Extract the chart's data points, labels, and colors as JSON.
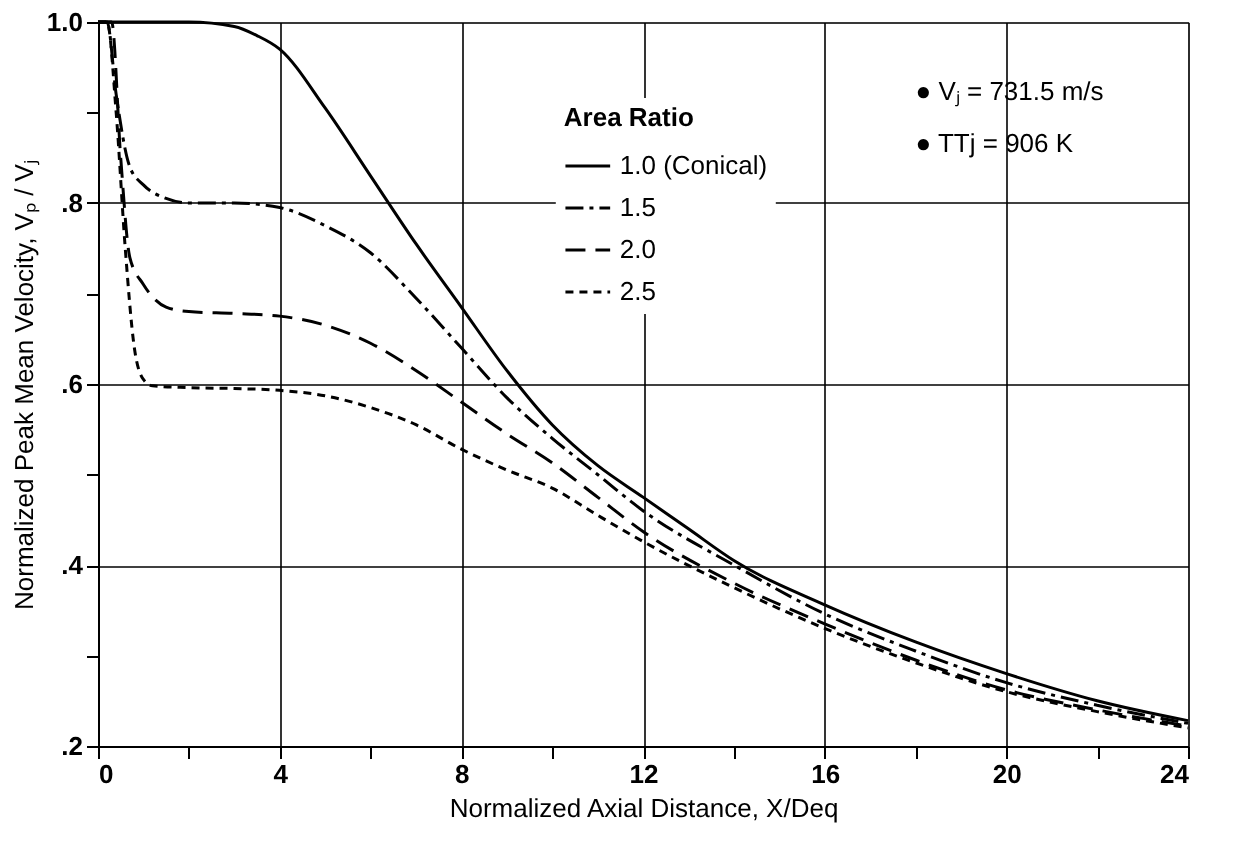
{
  "chart_data": {
    "type": "line",
    "xlabel": "Normalized Axial Distance, X/Deq",
    "ylabel": "Normalized Peak Mean Velocity, Vₚ / Vⱼ",
    "legend_title": "Area Ratio",
    "annotations": [
      "● Vⱼ = 731.5 m/s",
      "● TTj = 906 K"
    ],
    "series": [
      {
        "name": "1.0 (Conical)",
        "color": "#000000",
        "line_style": "solid",
        "x": [
          0,
          1,
          2,
          3,
          3.5,
          4,
          5,
          6,
          7,
          8,
          9,
          10,
          11,
          12,
          13,
          14,
          16,
          18,
          20,
          22,
          24
        ],
        "values": [
          1.0,
          1.0,
          1.0,
          0.995,
          0.985,
          0.97,
          0.905,
          0.83,
          0.755,
          0.685,
          0.615,
          0.555,
          0.51,
          0.475,
          0.44,
          0.405,
          0.356,
          0.315,
          0.28,
          0.25,
          0.228
        ]
      },
      {
        "name": "1.5",
        "color": "#000000",
        "line_style": "dashdot",
        "x": [
          0,
          0.2,
          0.4,
          0.7,
          1,
          1.5,
          2,
          3,
          4,
          5,
          6,
          7,
          8,
          9,
          10,
          11,
          12,
          14,
          16,
          18,
          20,
          22,
          24
        ],
        "values": [
          1.0,
          1.0,
          0.92,
          0.84,
          0.82,
          0.805,
          0.8,
          0.8,
          0.795,
          0.775,
          0.745,
          0.695,
          0.64,
          0.585,
          0.54,
          0.5,
          0.46,
          0.4,
          0.346,
          0.305,
          0.27,
          0.245,
          0.225
        ]
      },
      {
        "name": "2.0",
        "color": "#000000",
        "line_style": "longdash",
        "x": [
          0,
          0.3,
          0.5,
          0.7,
          1,
          1.5,
          2,
          3,
          4,
          5,
          6,
          7,
          8,
          9,
          10,
          11,
          12,
          14,
          16,
          18,
          20,
          22,
          24
        ],
        "values": [
          1.0,
          1.0,
          0.85,
          0.74,
          0.71,
          0.685,
          0.68,
          0.678,
          0.675,
          0.665,
          0.645,
          0.615,
          0.58,
          0.545,
          0.513,
          0.475,
          0.437,
          0.38,
          0.335,
          0.295,
          0.262,
          0.24,
          0.222
        ]
      },
      {
        "name": "2.5",
        "color": "#000000",
        "line_style": "shortdash",
        "x": [
          0,
          0.2,
          0.4,
          0.6,
          0.8,
          1,
          1.2,
          2,
          3,
          4,
          5,
          6,
          7,
          8,
          9,
          10,
          11,
          12,
          14,
          16,
          18,
          20,
          22,
          24
        ],
        "values": [
          1.0,
          1.0,
          0.9,
          0.75,
          0.64,
          0.605,
          0.598,
          0.596,
          0.595,
          0.593,
          0.587,
          0.574,
          0.555,
          0.528,
          0.505,
          0.485,
          0.455,
          0.426,
          0.375,
          0.33,
          0.292,
          0.26,
          0.238,
          0.22
        ]
      }
    ],
    "xlim": [
      0,
      24
    ],
    "xticks": [
      0,
      {
        "value": 2,
        "label": null
      },
      4,
      {
        "value": 6,
        "label": null
      },
      8,
      {
        "value": 10,
        "label": null
      },
      12,
      {
        "value": 14,
        "label": null
      },
      16,
      {
        "value": 18,
        "label": null
      },
      20,
      {
        "value": 22,
        "label": null
      },
      24
    ],
    "ylim": [
      0.2,
      1.0
    ],
    "yticks": [
      {
        "value": 0.2,
        "label": ".2"
      },
      {
        "value": 0.3,
        "label": null
      },
      {
        "value": 0.4,
        "label": ".4"
      },
      {
        "value": 0.5,
        "label": null
      },
      {
        "value": 0.6,
        "label": ".6"
      },
      {
        "value": 0.7,
        "label": null
      },
      {
        "value": 0.8,
        "label": ".8"
      },
      {
        "value": 0.9,
        "label": null
      },
      {
        "value": 1.0,
        "label": "1.0"
      }
    ],
    "grid": true,
    "legend": "top",
    "marker": "none"
  }
}
